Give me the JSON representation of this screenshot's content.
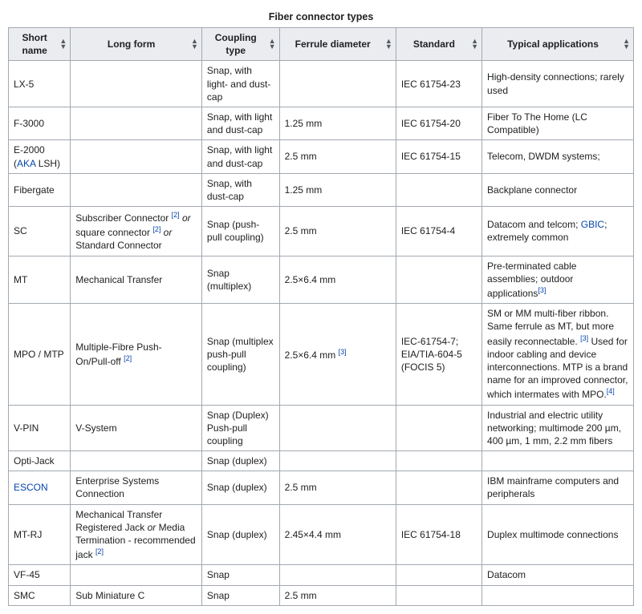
{
  "caption": "Fiber connector types",
  "columns": [
    {
      "key": "short",
      "label": "Short name",
      "width": "col-short"
    },
    {
      "key": "long",
      "label": "Long form",
      "width": "col-long"
    },
    {
      "key": "coupling",
      "label": "Coupling type",
      "width": "col-coup"
    },
    {
      "key": "ferrule",
      "label": "Ferrule diameter",
      "width": "col-ferr"
    },
    {
      "key": "standard",
      "label": "Standard",
      "width": "col-std"
    },
    {
      "key": "app",
      "label": "Typical applications",
      "width": "col-app"
    }
  ],
  "rows": [
    {
      "short": {
        "html": "LX-5"
      },
      "long": {
        "html": ""
      },
      "coupling": {
        "html": "Snap, with light- and dust-cap"
      },
      "ferrule": {
        "html": ""
      },
      "standard": {
        "html": "IEC 61754-23"
      },
      "app": {
        "html": "High-density connections; rarely used"
      }
    },
    {
      "short": {
        "html": "F-3000"
      },
      "long": {
        "html": ""
      },
      "coupling": {
        "html": "Snap, with light and dust-cap"
      },
      "ferrule": {
        "html": "1.25 mm"
      },
      "standard": {
        "html": "IEC 61754-20"
      },
      "app": {
        "html": "Fiber To The Home (LC Compatible)"
      }
    },
    {
      "short": {
        "html": "E-2000 (<a href='#' data-name='link-aka' data-interactable='true'>AKA</a> LSH)"
      },
      "long": {
        "html": ""
      },
      "coupling": {
        "html": "Snap, with light and dust-cap"
      },
      "ferrule": {
        "html": "2.5 mm"
      },
      "standard": {
        "html": "IEC 61754-15"
      },
      "app": {
        "html": "Telecom, DWDM systems;"
      }
    },
    {
      "short": {
        "html": "Fibergate"
      },
      "long": {
        "html": ""
      },
      "coupling": {
        "html": "Snap, with dust-cap"
      },
      "ferrule": {
        "html": "1.25 mm"
      },
      "standard": {
        "html": ""
      },
      "app": {
        "html": "Backplane connector"
      }
    },
    {
      "short": {
        "html": "SC"
      },
      "long": {
        "html": "Subscriber Connector <sup data-name='ref-2' data-interactable='true'>[2]</sup> <em>or</em> square connector <sup data-name='ref-2' data-interactable='true'>[2]</sup> <em>or</em> Standard Connector"
      },
      "coupling": {
        "html": "Snap (push-pull coupling)"
      },
      "ferrule": {
        "html": "2.5 mm"
      },
      "standard": {
        "html": "IEC 61754-4"
      },
      "app": {
        "html": "Datacom and telcom; <a href='#' data-name='link-gbic' data-interactable='true'>GBIC</a>; extremely common"
      }
    },
    {
      "short": {
        "html": "MT"
      },
      "long": {
        "html": "Mechanical Transfer"
      },
      "coupling": {
        "html": "Snap (multiplex)"
      },
      "ferrule": {
        "html": "2.5×6.4 mm"
      },
      "standard": {
        "html": ""
      },
      "app": {
        "html": "Pre-terminated cable assemblies; outdoor applications<sup data-name='ref-3' data-interactable='true'>[3]</sup>"
      }
    },
    {
      "short": {
        "html": "MPO / MTP"
      },
      "long": {
        "html": "Multiple-Fibre Push-On/Pull-off <sup data-name='ref-2' data-interactable='true'>[2]</sup>"
      },
      "coupling": {
        "html": "Snap (multiplex push-pull coupling)"
      },
      "ferrule": {
        "html": "2.5×6.4 mm <sup data-name='ref-3' data-interactable='true'>[3]</sup>"
      },
      "standard": {
        "html": "IEC-61754-7; EIA/TIA-604-5 (FOCIS 5)"
      },
      "app": {
        "html": "SM or MM multi-fiber ribbon. Same ferrule as MT, but more easily reconnectable. <sup data-name='ref-3' data-interactable='true'>[3]</sup> Used for indoor cabling and device interconnections. MTP is a brand name for an improved connector, which intermates with MPO.<sup data-name='ref-4' data-interactable='true'>[4]</sup>"
      }
    },
    {
      "short": {
        "html": "V-PIN"
      },
      "long": {
        "html": "V-System"
      },
      "coupling": {
        "html": "Snap (Duplex) Push-pull coupling"
      },
      "ferrule": {
        "html": ""
      },
      "standard": {
        "html": ""
      },
      "app": {
        "html": "Industrial and electric utility networking; multimode 200 µm, 400 µm, 1 mm, 2.2 mm fibers"
      }
    },
    {
      "short": {
        "html": "Opti-Jack"
      },
      "long": {
        "html": ""
      },
      "coupling": {
        "html": "Snap (duplex)"
      },
      "ferrule": {
        "html": ""
      },
      "standard": {
        "html": ""
      },
      "app": {
        "html": ""
      }
    },
    {
      "short": {
        "html": "<a href='#' data-name='link-escon' data-interactable='true'>ESCON</a>"
      },
      "long": {
        "html": "Enterprise Systems Connection"
      },
      "coupling": {
        "html": "Snap (duplex)"
      },
      "ferrule": {
        "html": "2.5 mm"
      },
      "standard": {
        "html": ""
      },
      "app": {
        "html": "IBM mainframe computers and peripherals"
      }
    },
    {
      "short": {
        "html": "MT-RJ"
      },
      "long": {
        "html": "Mechanical Transfer Registered Jack <em>or</em> Media Termination - recommended jack <sup data-name='ref-2' data-interactable='true'>[2]</sup>"
      },
      "coupling": {
        "html": "Snap (duplex)"
      },
      "ferrule": {
        "html": "2.45×4.4 mm"
      },
      "standard": {
        "html": "IEC 61754-18"
      },
      "app": {
        "html": "Duplex multimode connections"
      }
    },
    {
      "short": {
        "html": "VF-45"
      },
      "long": {
        "html": ""
      },
      "coupling": {
        "html": "Snap"
      },
      "ferrule": {
        "html": ""
      },
      "standard": {
        "html": ""
      },
      "app": {
        "html": "Datacom"
      }
    },
    {
      "short": {
        "html": "SMC"
      },
      "long": {
        "html": "Sub Miniature C"
      },
      "coupling": {
        "html": "Snap"
      },
      "ferrule": {
        "html": "2.5 mm"
      },
      "standard": {
        "html": ""
      },
      "app": {
        "html": ""
      }
    }
  ]
}
